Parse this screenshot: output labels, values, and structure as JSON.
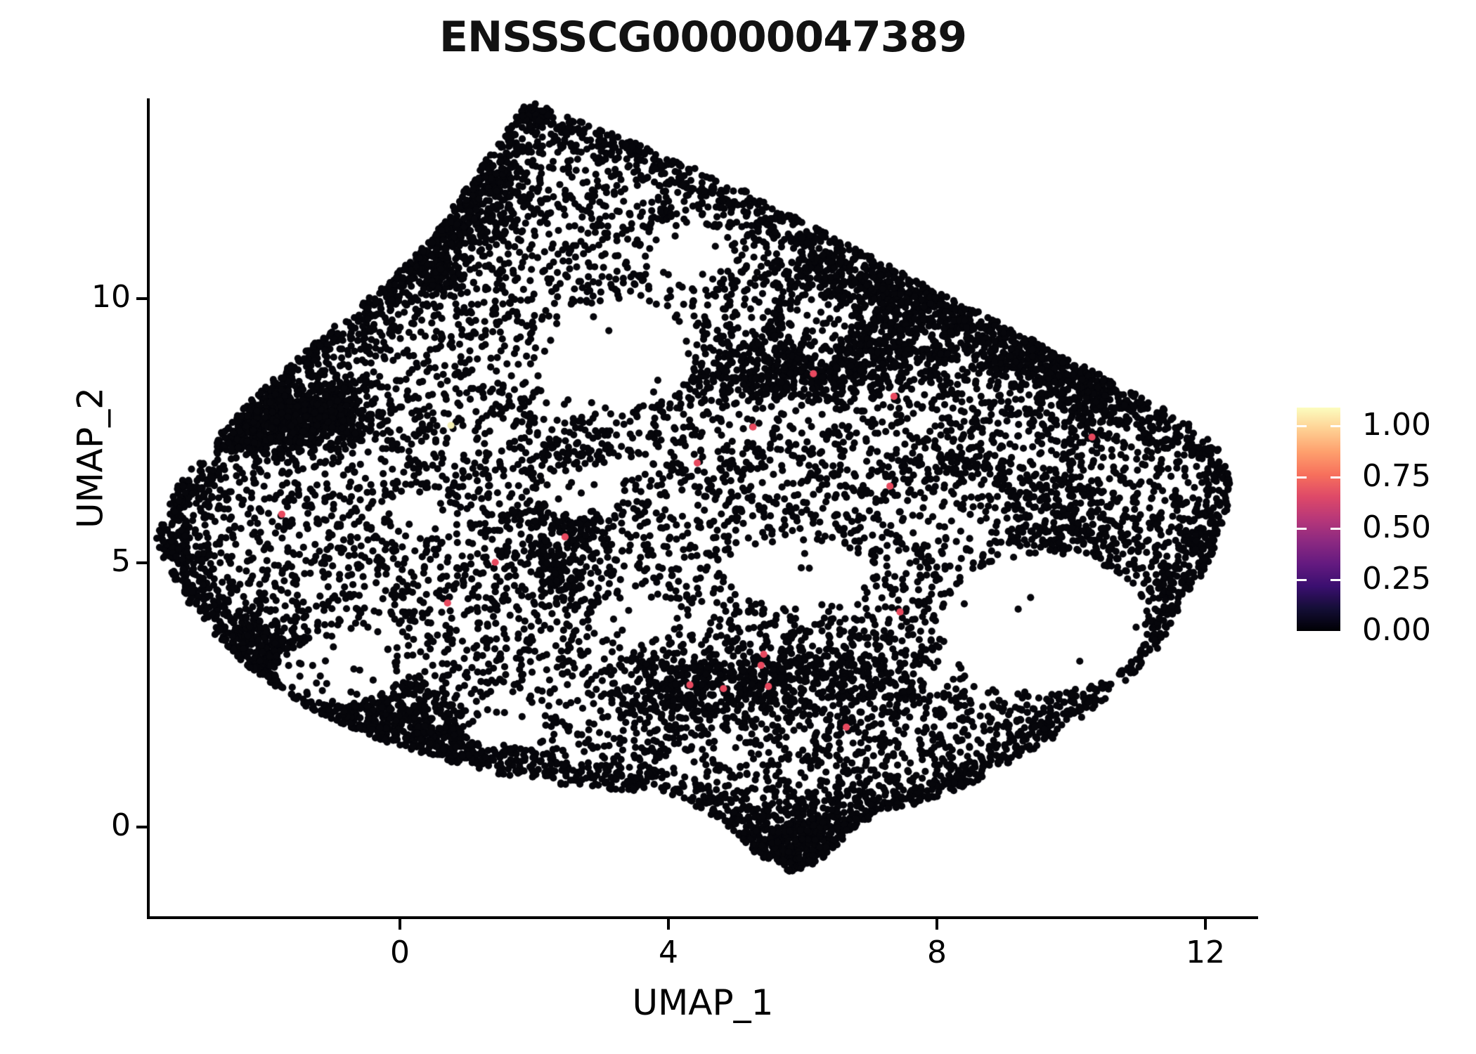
{
  "title": "ENSSSCG00000047389",
  "axes": {
    "x": {
      "label": "UMAP_1",
      "ticks": [
        0,
        4,
        8,
        12
      ],
      "range": [
        -3.75,
        12.76
      ]
    },
    "y": {
      "label": "UMAP_2",
      "ticks": [
        0,
        5,
        10
      ],
      "range": [
        -1.72,
        13.79
      ]
    }
  },
  "legend": {
    "ticks": [
      "1.00",
      "0.75",
      "0.50",
      "0.25",
      "0.00"
    ],
    "tick_values": [
      1.0,
      0.75,
      0.5,
      0.25,
      0.0
    ],
    "bar_value_range": [
      0,
      1.09
    ],
    "gradient_stops": [
      "#000004",
      "#140e36",
      "#3b0f70",
      "#641a80",
      "#8c2981",
      "#b73779",
      "#de4968",
      "#f7705c",
      "#fe9f6d",
      "#fecf92",
      "#fcfdbf"
    ],
    "position": "right"
  },
  "chart_data": {
    "type": "scatter",
    "title": "ENSSSCG00000047389",
    "xlabel": "UMAP_1",
    "ylabel": "UMAP_2",
    "xlim": [
      -3.75,
      12.76
    ],
    "ylim": [
      -1.72,
      13.79
    ],
    "grid": false,
    "point_radius_px": 5.1,
    "colors": {
      "zero_expression": "#06060b",
      "mid_expression": "#e8495f",
      "high_expression": "#f4efb4"
    },
    "highlighted_points": [
      {
        "x": 0.76,
        "y": 7.6,
        "value": 0.97,
        "color": "#f4efb4"
      },
      {
        "x": 6.16,
        "y": 8.58,
        "value": 0.6,
        "color": "#e8495f"
      },
      {
        "x": 7.36,
        "y": 8.15,
        "value": 0.6,
        "color": "#e8495f"
      },
      {
        "x": 5.26,
        "y": 7.57,
        "value": 0.6,
        "color": "#e8495f"
      },
      {
        "x": 4.43,
        "y": 6.89,
        "value": 0.6,
        "color": "#e8495f"
      },
      {
        "x": 10.31,
        "y": 7.38,
        "value": 0.6,
        "color": "#e8495f"
      },
      {
        "x": -1.76,
        "y": 5.92,
        "value": 0.6,
        "color": "#e8495f"
      },
      {
        "x": 2.46,
        "y": 5.49,
        "value": 0.6,
        "color": "#e8495f"
      },
      {
        "x": 1.42,
        "y": 5.01,
        "value": 0.6,
        "color": "#e8495f"
      },
      {
        "x": 0.71,
        "y": 4.24,
        "value": 0.6,
        "color": "#e8495f"
      },
      {
        "x": 7.3,
        "y": 6.45,
        "value": 0.6,
        "color": "#e8495f"
      },
      {
        "x": 7.45,
        "y": 4.07,
        "value": 0.6,
        "color": "#e8495f"
      },
      {
        "x": 5.42,
        "y": 3.27,
        "value": 0.6,
        "color": "#e8495f"
      },
      {
        "x": 5.38,
        "y": 3.06,
        "value": 0.6,
        "color": "#e8495f"
      },
      {
        "x": 4.32,
        "y": 2.69,
        "value": 0.6,
        "color": "#e8495f"
      },
      {
        "x": 4.82,
        "y": 2.62,
        "value": 0.6,
        "color": "#e8495f"
      },
      {
        "x": 5.49,
        "y": 2.66,
        "value": 0.6,
        "color": "#e8495f"
      },
      {
        "x": 6.65,
        "y": 1.89,
        "value": 0.6,
        "color": "#e8495f"
      }
    ],
    "background_cloud": {
      "description": "~10k cells with zero expression forming the UMAP blob",
      "seed": 1337,
      "base_count": 6000,
      "edge_count": 2400,
      "edge_sigma": 0.33,
      "hull": [
        [
          1.9,
          13.75
        ],
        [
          3.1,
          13.15
        ],
        [
          4.2,
          12.6
        ],
        [
          5.3,
          11.95
        ],
        [
          6.5,
          11.15
        ],
        [
          7.7,
          10.35
        ],
        [
          9.0,
          9.5
        ],
        [
          10.3,
          8.65
        ],
        [
          11.4,
          7.9
        ],
        [
          12.1,
          7.35
        ],
        [
          12.45,
          6.7
        ],
        [
          12.3,
          5.9
        ],
        [
          12.1,
          5.1
        ],
        [
          11.7,
          4.2
        ],
        [
          11.3,
          3.4
        ],
        [
          10.7,
          2.6
        ],
        [
          10.0,
          1.9
        ],
        [
          9.2,
          1.25
        ],
        [
          8.4,
          0.75
        ],
        [
          7.6,
          0.4
        ],
        [
          6.9,
          0.1
        ],
        [
          6.4,
          -0.5
        ],
        [
          5.9,
          -0.9
        ],
        [
          5.3,
          -0.5
        ],
        [
          4.8,
          0.1
        ],
        [
          4.2,
          0.5
        ],
        [
          3.4,
          0.7
        ],
        [
          2.5,
          0.75
        ],
        [
          1.6,
          0.95
        ],
        [
          0.7,
          1.25
        ],
        [
          -0.3,
          1.65
        ],
        [
          -1.3,
          2.2
        ],
        [
          -2.2,
          2.95
        ],
        [
          -2.9,
          3.8
        ],
        [
          -3.35,
          4.6
        ],
        [
          -3.65,
          5.45
        ],
        [
          -3.35,
          6.4
        ],
        [
          -2.85,
          7.2
        ],
        [
          -2.2,
          8.1
        ],
        [
          -1.5,
          8.95
        ],
        [
          -0.75,
          9.7
        ],
        [
          -0.1,
          10.4
        ],
        [
          0.5,
          11.2
        ],
        [
          1.1,
          12.3
        ]
      ],
      "voids": [
        [
          3.2,
          8.95,
          1.2,
          1.0,
          0.06
        ],
        [
          2.7,
          6.35,
          0.62,
          0.5,
          0.08
        ],
        [
          5.95,
          4.8,
          1.1,
          0.62,
          0.05
        ],
        [
          9.6,
          3.85,
          1.55,
          1.3,
          0.04
        ],
        [
          -0.95,
          2.95,
          0.9,
          0.62,
          0.06
        ],
        [
          1.55,
          2.0,
          0.62,
          0.5,
          0.08
        ],
        [
          0.35,
          5.9,
          0.5,
          0.42,
          0.1
        ],
        [
          4.35,
          10.9,
          0.55,
          0.5,
          0.1
        ],
        [
          6.3,
          9.6,
          0.5,
          0.4,
          0.2
        ],
        [
          3.45,
          3.95,
          0.6,
          0.5,
          0.12
        ],
        [
          8.2,
          5.95,
          1.0,
          0.7,
          0.45
        ]
      ],
      "ridges": [
        [
          -2.35,
          7.45,
          -0.75,
          7.95,
          0.32,
          620
        ],
        [
          6.0,
          10.45,
          11.1,
          8.05,
          0.5,
          780
        ],
        [
          4.4,
          8.55,
          7.4,
          8.85,
          0.38,
          480
        ],
        [
          3.4,
          2.55,
          7.3,
          2.85,
          0.42,
          640
        ],
        [
          -2.6,
          3.7,
          1.0,
          1.5,
          0.38,
          500
        ],
        [
          7.9,
          6.7,
          10.9,
          5.3,
          0.55,
          380
        ],
        [
          2.35,
          4.3,
          2.6,
          7.1,
          0.3,
          260
        ],
        [
          5.3,
          -0.45,
          6.7,
          0.25,
          0.35,
          260
        ],
        [
          0.2,
          10.2,
          1.6,
          12.6,
          0.4,
          300
        ]
      ]
    }
  }
}
